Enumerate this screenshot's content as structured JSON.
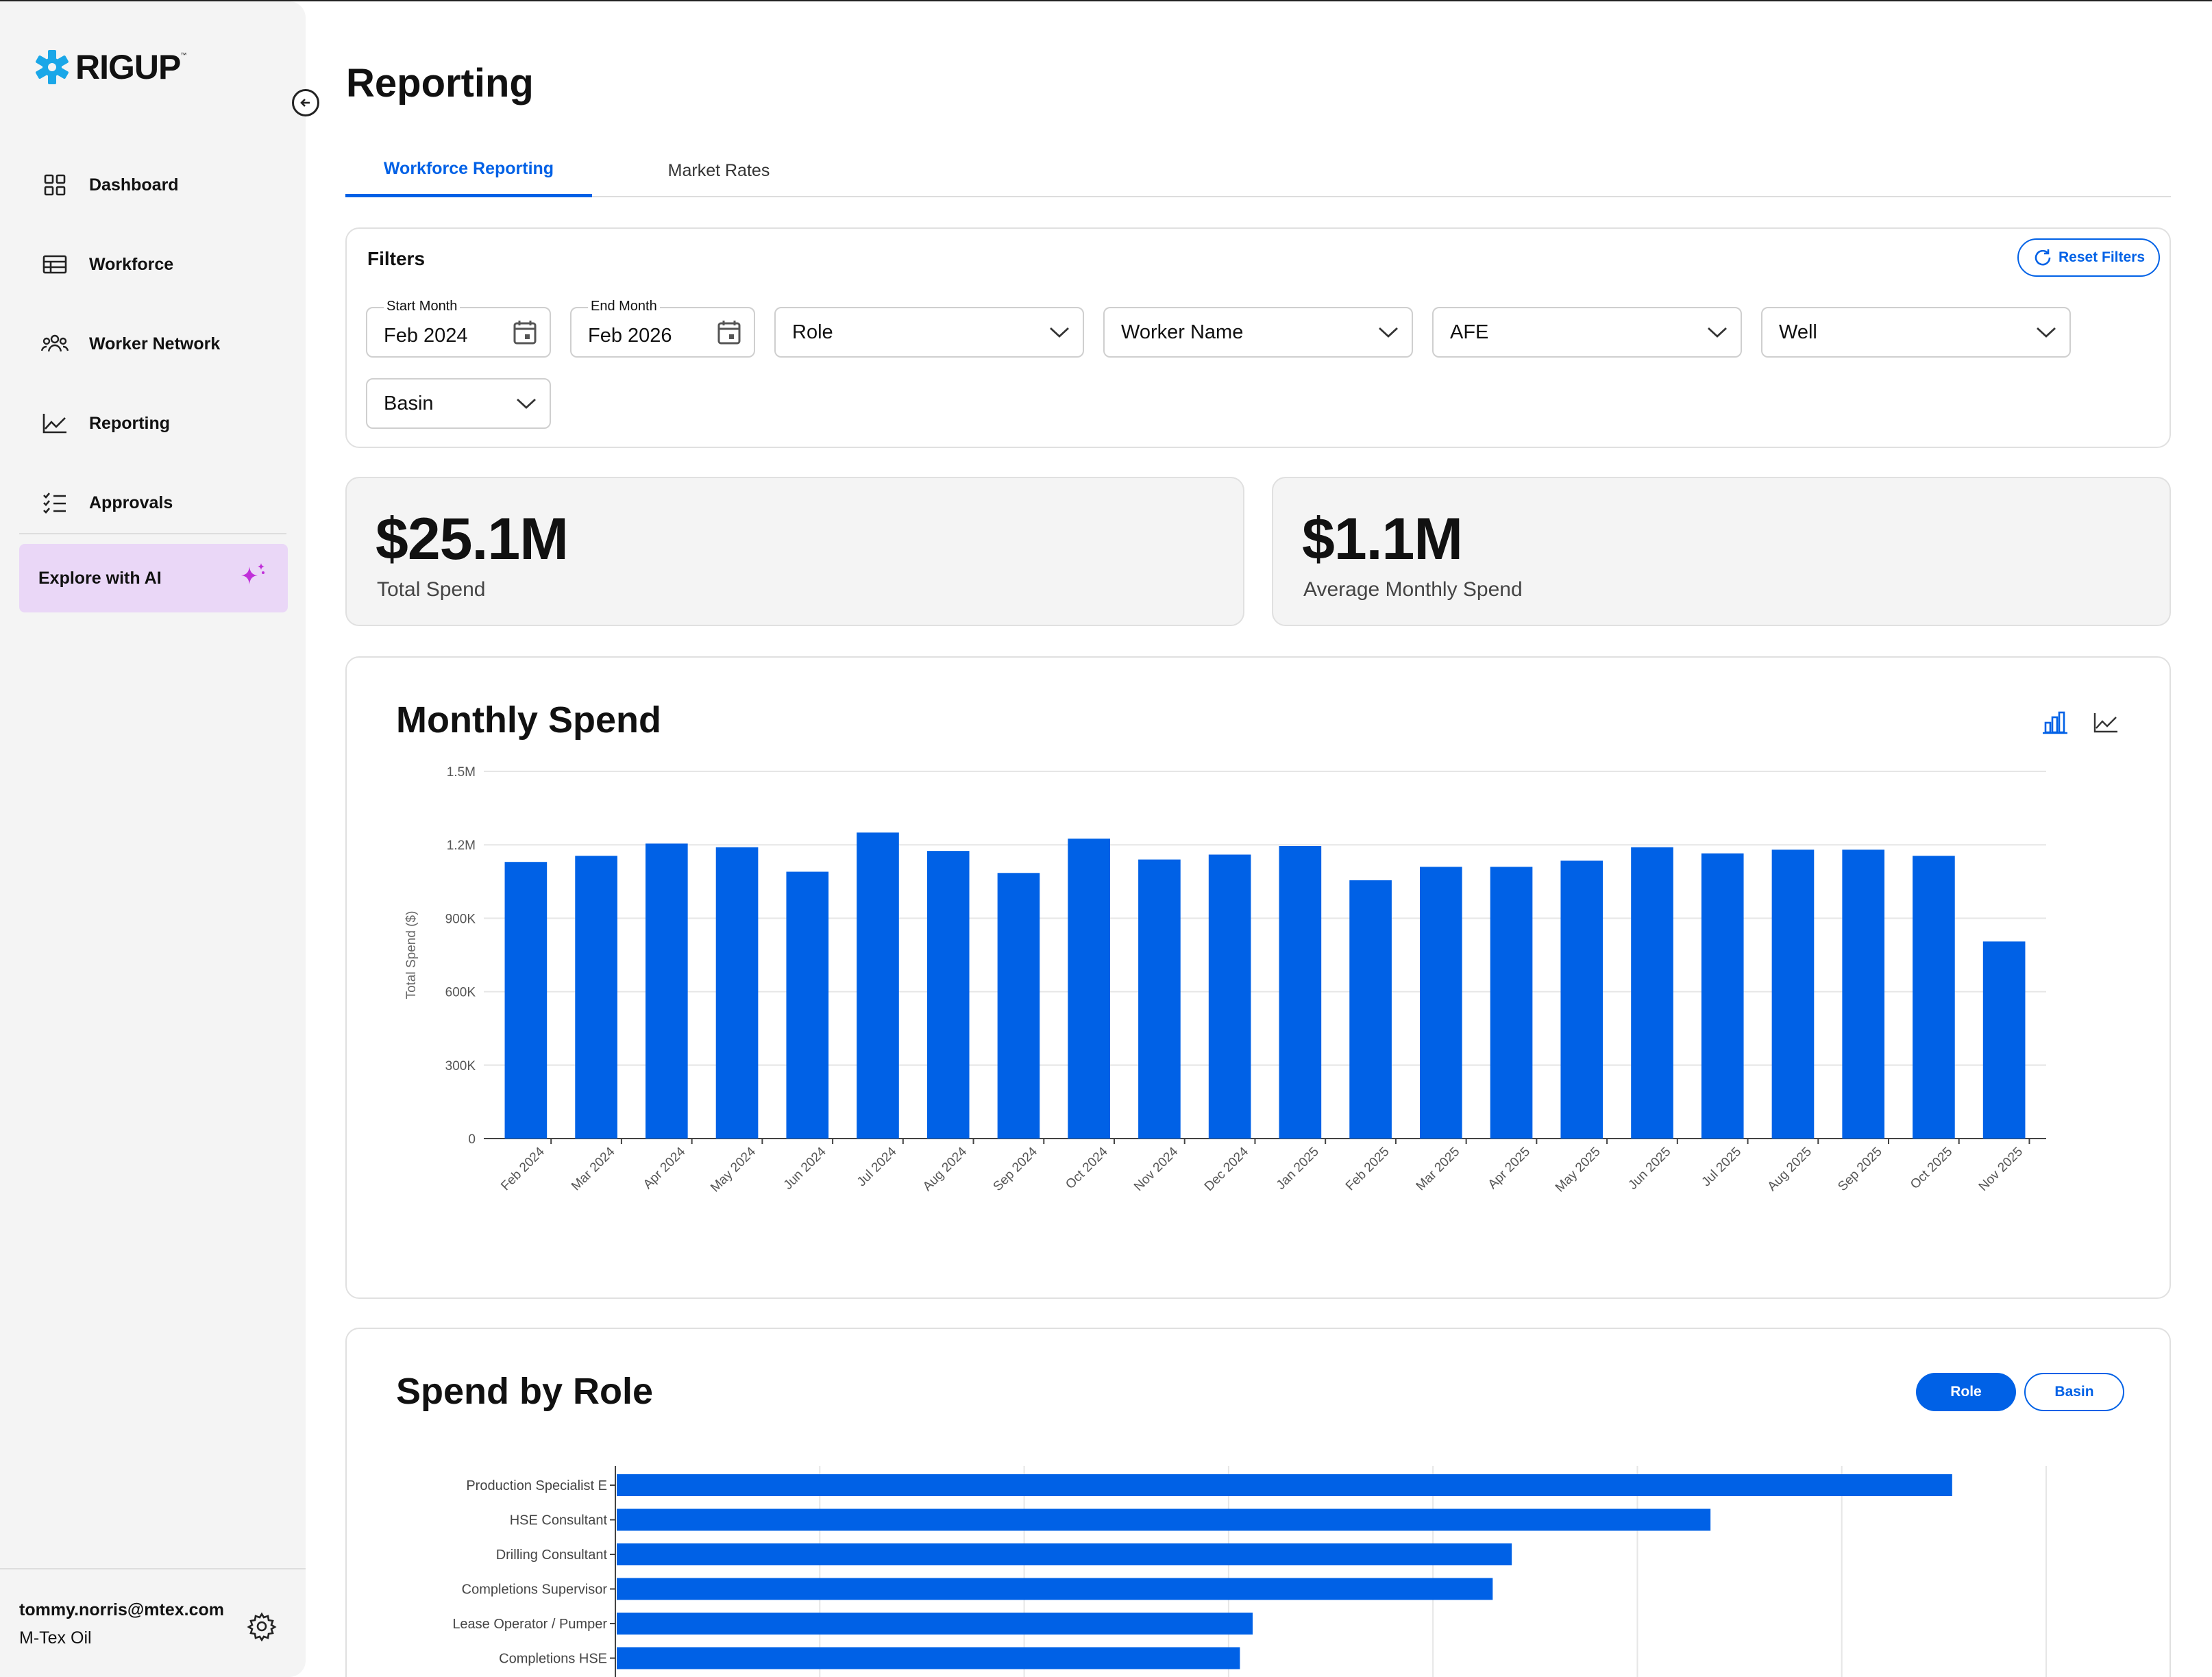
{
  "app": {
    "brand": "RIGUP"
  },
  "sidebar": {
    "items": [
      {
        "label": "Dashboard",
        "icon": "dashboard-icon"
      },
      {
        "label": "Workforce",
        "icon": "table-icon"
      },
      {
        "label": "Worker Network",
        "icon": "network-icon"
      },
      {
        "label": "Reporting",
        "icon": "chart-line-icon"
      },
      {
        "label": "Approvals",
        "icon": "checklist-icon"
      }
    ],
    "explore": {
      "label": "Explore with AI",
      "accent": "#c02fd9"
    },
    "user": {
      "email": "tommy.norris@mtex.com",
      "org": "M-Tex Oil"
    }
  },
  "page": {
    "title": "Reporting",
    "tabs": [
      {
        "label": "Workforce Reporting",
        "active": true
      },
      {
        "label": "Market Rates",
        "active": false
      }
    ]
  },
  "filters": {
    "title": "Filters",
    "reset_label": "Reset Filters",
    "start_month": {
      "label": "Start Month",
      "value": "Feb 2024"
    },
    "end_month": {
      "label": "End Month",
      "value": "Feb 2026"
    },
    "dropdowns": [
      "Role",
      "Worker Name",
      "AFE",
      "Well",
      "Basin"
    ]
  },
  "stats": {
    "total": {
      "value": "$25.1M",
      "label": "Total Spend"
    },
    "average": {
      "value": "$1.1M",
      "label": "Average Monthly Spend"
    }
  },
  "monthly": {
    "title": "Monthly Spend"
  },
  "spend_by_role": {
    "title": "Spend by Role",
    "toggle": [
      {
        "label": "Role",
        "active": true
      },
      {
        "label": "Basin",
        "active": false
      }
    ]
  },
  "colors": {
    "accent": "#0061e6",
    "bar": "#0061e6"
  },
  "chart_data": [
    {
      "type": "bar",
      "title": "Monthly Spend",
      "ylabel": "Total Spend ($)",
      "xlabel": "",
      "ylim": [
        0,
        1500000
      ],
      "yticks": [
        {
          "v": 0,
          "label": "0"
        },
        {
          "v": 300000,
          "label": "300K"
        },
        {
          "v": 600000,
          "label": "600K"
        },
        {
          "v": 900000,
          "label": "900K"
        },
        {
          "v": 1200000,
          "label": "1.2M"
        },
        {
          "v": 1500000,
          "label": "1.5M"
        }
      ],
      "grid": true,
      "categories": [
        "Feb 2024",
        "Mar 2024",
        "Apr 2024",
        "May 2024",
        "Jun 2024",
        "Jul 2024",
        "Aug 2024",
        "Sep 2024",
        "Oct 2024",
        "Nov 2024",
        "Dec 2024",
        "Jan 2025",
        "Feb 2025",
        "Mar 2025",
        "Apr 2025",
        "May 2025",
        "Jun 2025",
        "Jul 2025",
        "Aug 2025",
        "Sep 2025",
        "Oct 2025",
        "Nov 2025"
      ],
      "values": [
        1130000,
        1155000,
        1205000,
        1190000,
        1090000,
        1250000,
        1175000,
        1085000,
        1225000,
        1140000,
        1160000,
        1195000,
        1055000,
        1110000,
        1110000,
        1135000,
        1190000,
        1165000,
        1180000,
        1180000,
        1155000,
        805000
      ]
    },
    {
      "type": "bar",
      "orientation": "horizontal",
      "title": "Spend by Role",
      "categories": [
        "Production Specialist E",
        "HSE Consultant",
        "Drilling Consultant",
        "Completions Supervisor",
        "Lease Operator / Pumper",
        "Completions HSE"
      ],
      "values": [
        4200000,
        3440000,
        2815000,
        2755000,
        2000000,
        1960000
      ],
      "xlim": [
        0,
        4500000
      ],
      "grid": true
    }
  ]
}
